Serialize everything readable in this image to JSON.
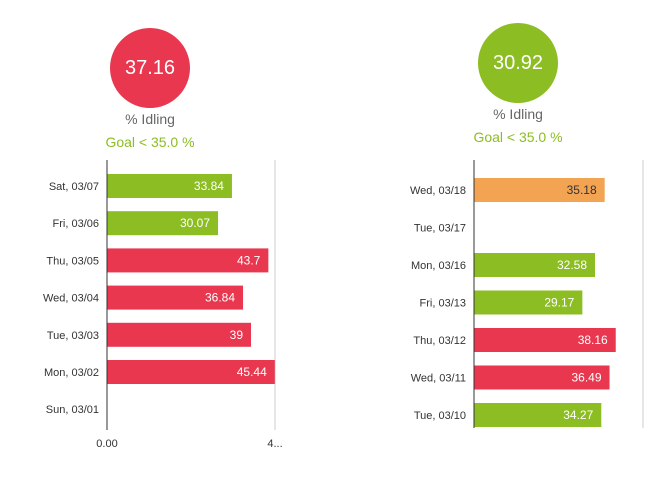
{
  "colors": {
    "above_goal": "#e8374f",
    "below_goal": "#8cbd22",
    "near_goal": "#f2a453"
  },
  "panels": [
    {
      "kpi": "37.16",
      "kpi_color": "#e8374f",
      "metric_label": "% Idling",
      "goal_label": "Goal < 35.0 %"
    },
    {
      "kpi": "30.92",
      "kpi_color": "#8cbd22",
      "metric_label": "% Idling",
      "goal_label": "Goal < 35.0 %"
    }
  ],
  "chart_data": [
    {
      "type": "bar",
      "orientation": "horizontal",
      "xlim": [
        0,
        45.5
      ],
      "xtick_labels": [
        "0.00",
        "4..."
      ],
      "categories": [
        "Sat, 03/07",
        "Fri, 03/06",
        "Thu, 03/05",
        "Wed, 03/04",
        "Tue, 03/03",
        "Mon, 03/02",
        "Sun, 03/01"
      ],
      "values": [
        33.84,
        30.07,
        43.7,
        36.84,
        39,
        45.44,
        null
      ],
      "labels": [
        "33.84",
        "30.07",
        "43.7",
        "36.84",
        "39",
        "45.44",
        ""
      ],
      "bar_colors": [
        "#8cbd22",
        "#8cbd22",
        "#e8374f",
        "#e8374f",
        "#e8374f",
        "#e8374f",
        ""
      ]
    },
    {
      "type": "bar",
      "orientation": "horizontal",
      "xlim": [
        0,
        45.5
      ],
      "xtick_labels": [],
      "categories": [
        "Wed, 03/18",
        "Tue, 03/17",
        "Mon, 03/16",
        "Fri, 03/13",
        "Thu, 03/12",
        "Wed, 03/11",
        "Tue, 03/10"
      ],
      "values": [
        35.18,
        null,
        32.58,
        29.17,
        38.16,
        36.49,
        34.27
      ],
      "labels": [
        "35.18",
        "",
        "32.58",
        "29.17",
        "38.16",
        "36.49",
        "34.27"
      ],
      "bar_colors": [
        "#f2a453",
        "",
        "#8cbd22",
        "#8cbd22",
        "#e8374f",
        "#e8374f",
        "#8cbd22"
      ]
    }
  ]
}
